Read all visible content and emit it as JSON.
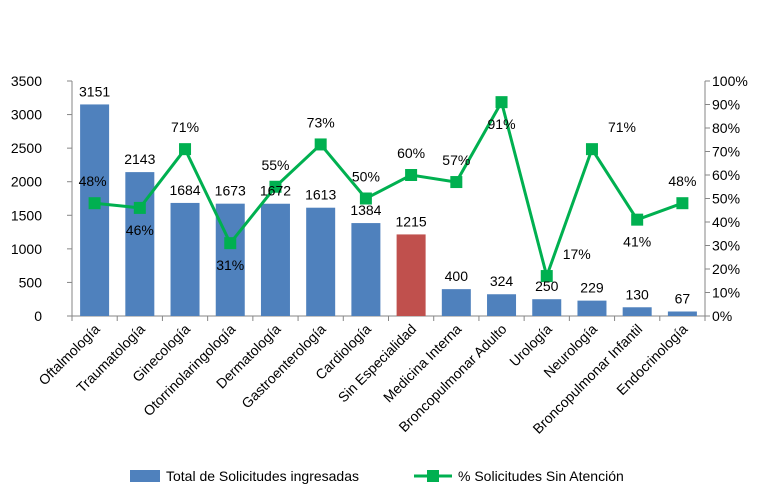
{
  "chart_data": {
    "type": "bar",
    "categories": [
      "Oftalmología",
      "Traumatología",
      "Ginecología",
      "Otorrinolaringología",
      "Dermatología",
      "Gastroenterología",
      "Cardiología",
      "Sin Especialidad",
      "Medicina Interna",
      "Broncopulmonar Adulto",
      "Urología",
      "Neurología",
      "Broncopulmonar Infantil",
      "Endocrinología"
    ],
    "series": [
      {
        "name": "Total de Solicitudes ingresadas",
        "type": "bar",
        "axis": "left",
        "values": [
          3151,
          2143,
          1684,
          1673,
          1672,
          1613,
          1384,
          1215,
          400,
          324,
          250,
          229,
          130,
          67
        ],
        "labels": [
          "3151",
          "2143",
          "1684",
          "1673",
          "1672",
          "1613",
          "1384",
          "1215",
          "400",
          "324",
          "250",
          "229",
          "130",
          "67"
        ]
      },
      {
        "name": "% Solicitudes Sin Atención",
        "type": "line",
        "axis": "right",
        "values": [
          48,
          46,
          71,
          31,
          55,
          73,
          50,
          60,
          57,
          91,
          17,
          71,
          41,
          48
        ],
        "labels": [
          "48%",
          "46%",
          "71%",
          "31%",
          "55%",
          "73%",
          "50%",
          "60%",
          "57%",
          "91%",
          "17%",
          "71%",
          "41%",
          "48%"
        ]
      }
    ],
    "left_axis": {
      "ylim": [
        0,
        3500
      ],
      "ticks": [
        "0",
        "500",
        "1000",
        "1500",
        "2000",
        "2500",
        "3000",
        "3500"
      ]
    },
    "right_axis": {
      "ylim": [
        0,
        100
      ],
      "ticks": [
        "0%",
        "10%",
        "20%",
        "30%",
        "40%",
        "50%",
        "60%",
        "70%",
        "80%",
        "90%",
        "100%"
      ]
    },
    "highlight_category": "Sin Especialidad",
    "colors": {
      "bar": "#4f81bd",
      "highlight_bar": "#c0504d",
      "line": "#00b050",
      "axis": "#868686"
    },
    "legend_position": "bottom",
    "grid": false
  }
}
